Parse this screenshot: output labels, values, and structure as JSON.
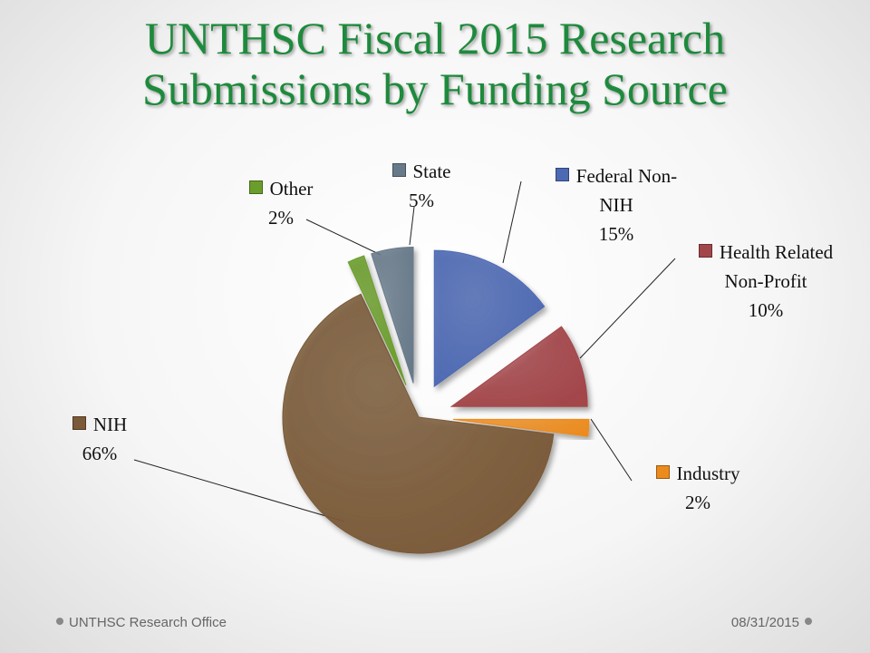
{
  "chart_data": {
    "type": "pie",
    "title": "UNTHSC Fiscal 2015 Research Submissions by Funding Source",
    "categories": [
      "Federal Non-NIH",
      "Health Related Non-Profit",
      "Industry",
      "NIH",
      "Other",
      "State"
    ],
    "values": [
      15,
      10,
      2,
      66,
      2,
      5
    ],
    "value_labels": [
      "15%",
      "10%",
      "2%",
      "66%",
      "2%",
      "5%"
    ],
    "colors": [
      "#4d69b3",
      "#a3464a",
      "#ec8b1c",
      "#7a5a38",
      "#6b9d2c",
      "#687a8a"
    ]
  },
  "footer": {
    "left": "UNTHSC Research Office",
    "right": "08/31/2015"
  }
}
